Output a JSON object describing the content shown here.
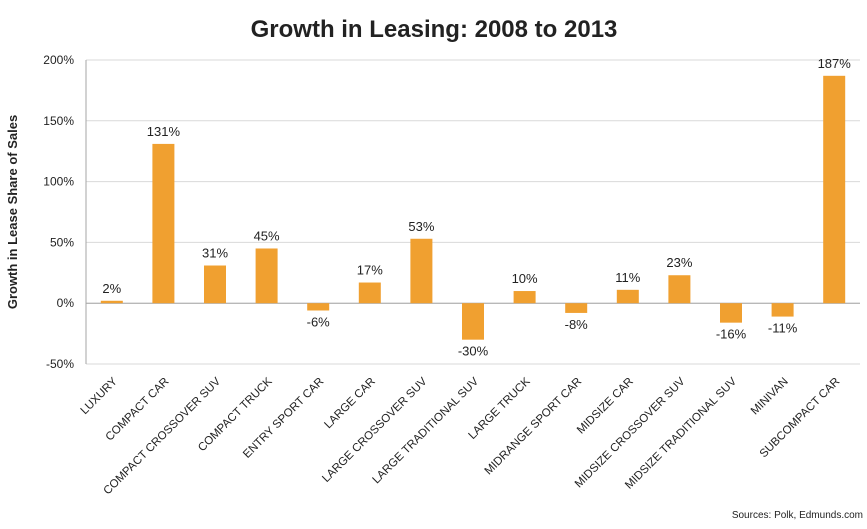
{
  "chart_data": {
    "type": "bar",
    "title": "Growth in Leasing: 2008 to 2013",
    "ylabel": "Growth in Lease Share of Sales",
    "xlabel": "",
    "ylim": [
      -50,
      200
    ],
    "yticks": [
      -50,
      0,
      50,
      100,
      150,
      200
    ],
    "ytick_labels": [
      "-50%",
      "0%",
      "50%",
      "100%",
      "150%",
      "200%"
    ],
    "grid": true,
    "legend": "none",
    "bar_color": "#F0A030",
    "categories": [
      "LUXURY",
      "COMPACT CAR",
      "COMPACT CROSSOVER SUV",
      "COMPACT TRUCK",
      "ENTRY SPORT CAR",
      "LARGE CAR",
      "LARGE CROSSOVER SUV",
      "LARGE TRADITIONAL SUV",
      "LARGE TRUCK",
      "MIDRANGE SPORT CAR",
      "MIDSIZE CAR",
      "MIDSIZE CROSSOVER SUV",
      "MIDSIZE TRADITIONAL SUV",
      "MINIVAN",
      "SUBCOMPACT CAR"
    ],
    "values": [
      2,
      131,
      31,
      45,
      -6,
      17,
      53,
      -30,
      10,
      -8,
      11,
      23,
      -16,
      -11,
      187
    ],
    "data_labels": [
      "2%",
      "131%",
      "31%",
      "45%",
      "-6%",
      "17%",
      "53%",
      "-30%",
      "10%",
      "-8%",
      "11%",
      "23%",
      "-16%",
      "-11%",
      "187%"
    ],
    "source": "Sources: Polk, Edmunds.com"
  }
}
